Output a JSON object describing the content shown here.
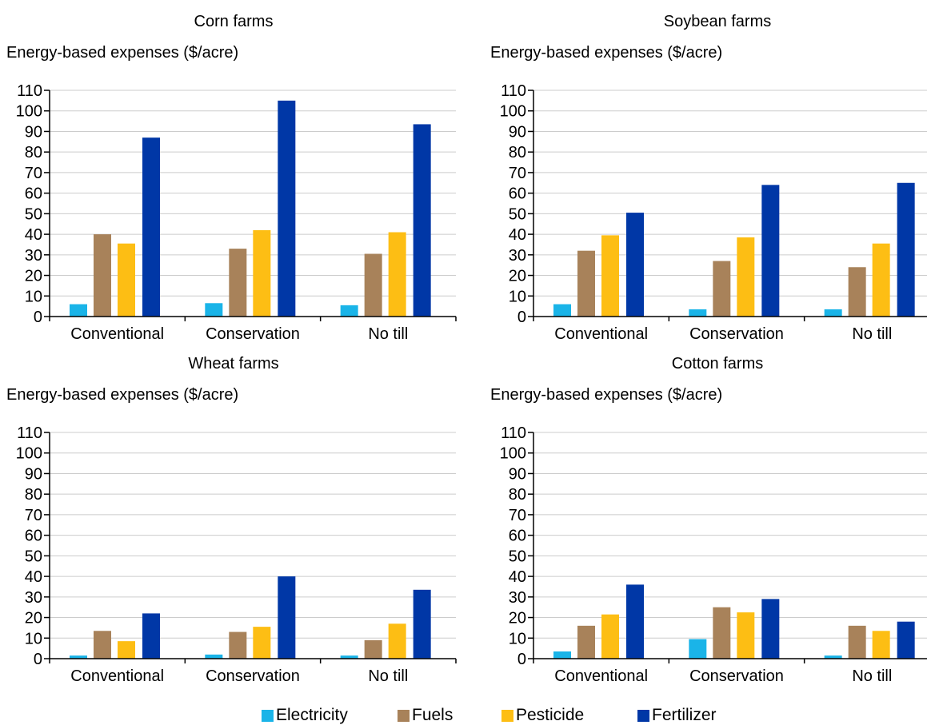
{
  "colors": {
    "electricity": "#1AB4E8",
    "fuels": "#A8825A",
    "pesticide": "#FDBE14",
    "fertilizer": "#0037A6",
    "grid": "#CCCCCC",
    "axis": "#000000"
  },
  "legend": [
    {
      "label": "Electricity",
      "color": "#1AB4E8"
    },
    {
      "label": "Fuels",
      "color": "#A8825A"
    },
    {
      "label": "Pesticide",
      "color": "#FDBE14"
    },
    {
      "label": "Fertilizer",
      "color": "#0037A6"
    }
  ],
  "chart_data": [
    {
      "type": "bar",
      "title": "Corn farms",
      "ylabel": "Energy-based expenses ($/acre)",
      "xlabel": "",
      "categories": [
        "Conventional",
        "Conservation",
        "No till"
      ],
      "ylim": [
        0,
        110
      ],
      "yticks": [
        0,
        10,
        20,
        30,
        40,
        50,
        60,
        70,
        80,
        90,
        100,
        110
      ],
      "grid": true,
      "legend_position": "bottom",
      "series": [
        {
          "name": "Electricity",
          "values": [
            6,
            6.5,
            5.5
          ]
        },
        {
          "name": "Fuels",
          "values": [
            40,
            33,
            30.5
          ]
        },
        {
          "name": "Pesticide",
          "values": [
            35.5,
            42,
            41
          ]
        },
        {
          "name": "Fertilizer",
          "values": [
            87,
            105,
            93.5
          ]
        }
      ]
    },
    {
      "type": "bar",
      "title": "Soybean farms",
      "ylabel": "Energy-based expenses ($/acre)",
      "xlabel": "",
      "categories": [
        "Conventional",
        "Conservation",
        "No till"
      ],
      "ylim": [
        0,
        110
      ],
      "yticks": [
        0,
        10,
        20,
        30,
        40,
        50,
        60,
        70,
        80,
        90,
        100,
        110
      ],
      "grid": true,
      "legend_position": "bottom",
      "series": [
        {
          "name": "Electricity",
          "values": [
            6,
            3.5,
            3.5
          ]
        },
        {
          "name": "Fuels",
          "values": [
            32,
            27,
            24
          ]
        },
        {
          "name": "Pesticide",
          "values": [
            39.5,
            38.5,
            35.5
          ]
        },
        {
          "name": "Fertilizer",
          "values": [
            50.5,
            64,
            65
          ]
        }
      ]
    },
    {
      "type": "bar",
      "title": "Wheat farms",
      "ylabel": "Energy-based expenses ($/acre)",
      "xlabel": "",
      "categories": [
        "Conventional",
        "Conservation",
        "No till"
      ],
      "ylim": [
        0,
        110
      ],
      "yticks": [
        0,
        10,
        20,
        30,
        40,
        50,
        60,
        70,
        80,
        90,
        100,
        110
      ],
      "grid": true,
      "legend_position": "bottom",
      "series": [
        {
          "name": "Electricity",
          "values": [
            1.5,
            2,
            1.5
          ]
        },
        {
          "name": "Fuels",
          "values": [
            13.5,
            13,
            9
          ]
        },
        {
          "name": "Pesticide",
          "values": [
            8.5,
            15.5,
            17
          ]
        },
        {
          "name": "Fertilizer",
          "values": [
            22,
            40,
            33.5
          ]
        }
      ]
    },
    {
      "type": "bar",
      "title": "Cotton farms",
      "ylabel": "Energy-based expenses ($/acre)",
      "xlabel": "",
      "categories": [
        "Conventional",
        "Conservation",
        "No till"
      ],
      "ylim": [
        0,
        110
      ],
      "yticks": [
        0,
        10,
        20,
        30,
        40,
        50,
        60,
        70,
        80,
        90,
        100,
        110
      ],
      "grid": true,
      "legend_position": "bottom",
      "series": [
        {
          "name": "Electricity",
          "values": [
            3.5,
            9.5,
            1.5
          ]
        },
        {
          "name": "Fuels",
          "values": [
            16,
            25,
            16
          ]
        },
        {
          "name": "Pesticide",
          "values": [
            21.5,
            22.5,
            13.5
          ]
        },
        {
          "name": "Fertilizer",
          "values": [
            36,
            29,
            18
          ]
        }
      ]
    }
  ]
}
